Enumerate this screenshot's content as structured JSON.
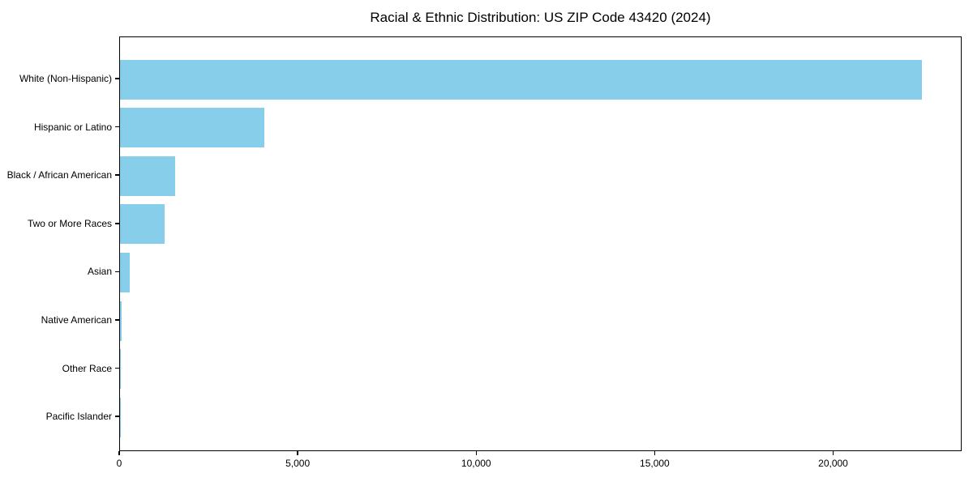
{
  "chart_data": {
    "type": "bar",
    "orientation": "horizontal",
    "title": "Racial & Ethnic Distribution: US ZIP Code 43420 (2024)",
    "categories": [
      "White (Non-Hispanic)",
      "Hispanic or Latino",
      "Black / African American",
      "Two or More Races",
      "Asian",
      "Native American",
      "Other Race",
      "Pacific Islander"
    ],
    "values": [
      22470,
      4050,
      1550,
      1250,
      270,
      40,
      20,
      5
    ],
    "xlabel": "",
    "ylabel": "",
    "xlim": [
      0,
      23600
    ],
    "x_ticks": [
      0,
      5000,
      10000,
      15000,
      20000
    ],
    "x_tick_labels": [
      "0",
      "5,000",
      "10,000",
      "15,000",
      "20,000"
    ],
    "bar_color": "#87CEEB",
    "axis_color": "#000000",
    "grid": false,
    "legend_position": "none"
  }
}
